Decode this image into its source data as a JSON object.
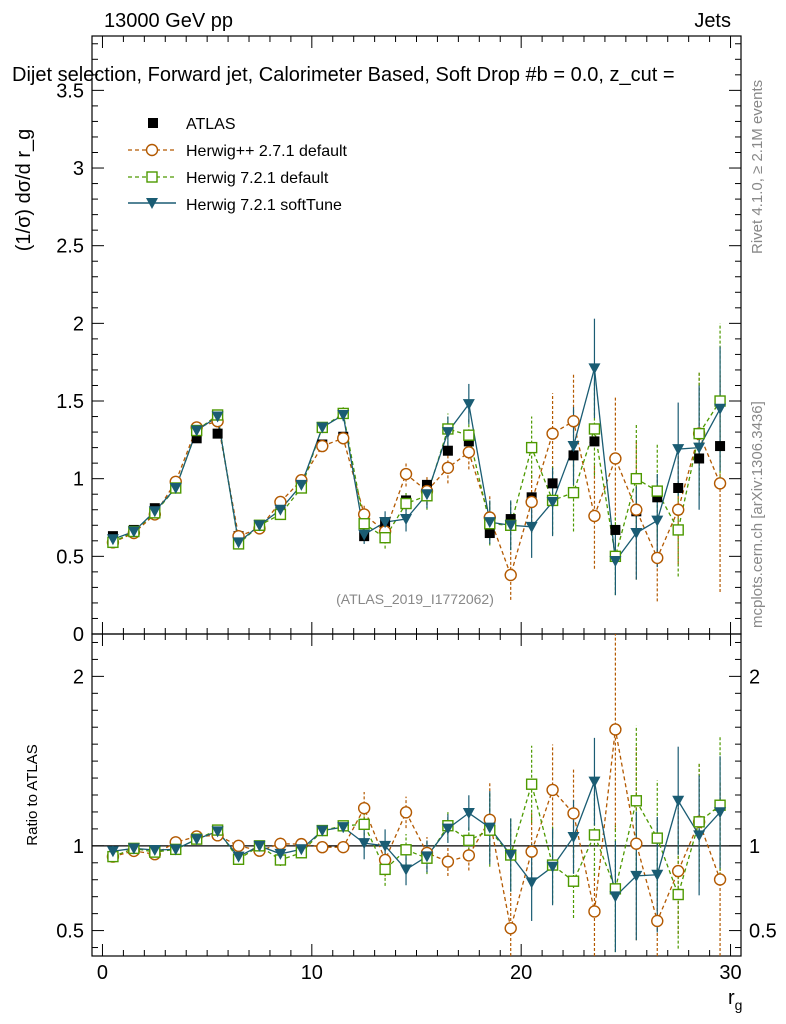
{
  "header": {
    "energy_label": "13000 GeV pp",
    "process_label": "Jets"
  },
  "side": {
    "rivet_label": "Rivet 4.1.0, ≥ 2.1M events",
    "mcplots_label": "mcplots.cern.ch [arXiv:1306.3436]"
  },
  "chart_data": {
    "type": "scatter",
    "title": "Dijet selection, Forward jet, Calorimeter Based, Soft Drop #b = 0.0, z_cut =",
    "analysis_id": "(ATLAS_2019_I1772062)",
    "xlabel": "r_g",
    "ylabel": "(1/σ) dσ/d r_g",
    "ratio_ylabel": "Ratio to ATLAS",
    "xlim": [
      -0.5,
      30.5
    ],
    "ylim": [
      0,
      3.85
    ],
    "ratio_ylim": [
      0.35,
      2.25
    ],
    "x_ticks": [
      0,
      10,
      20,
      30
    ],
    "y_ticks": [
      0,
      0.5,
      1,
      1.5,
      2,
      2.5,
      3,
      3.5
    ],
    "ratio_ticks": [
      0.5,
      1,
      2
    ],
    "x": [
      0.5,
      1.5,
      2.5,
      3.5,
      4.5,
      5.5,
      6.5,
      7.5,
      8.5,
      9.5,
      10.5,
      11.5,
      12.5,
      13.5,
      14.5,
      15.5,
      16.5,
      17.5,
      18.5,
      19.5,
      20.5,
      21.5,
      22.5,
      23.5,
      24.5,
      25.5,
      26.5,
      27.5,
      28.5,
      29.5
    ],
    "legend": [
      "ATLAS",
      "Herwig++ 2.7.1 default",
      "Herwig 7.2.1 default",
      "Herwig 7.2.1 softTune"
    ],
    "series": [
      {
        "name": "ATLAS",
        "color": "#000000",
        "marker": "square-filled",
        "values": [
          0.63,
          0.67,
          0.81,
          0.96,
          1.26,
          1.29,
          0.63,
          0.7,
          0.84,
          0.98,
          1.22,
          1.27,
          0.63,
          0.72,
          0.86,
          0.96,
          1.18,
          1.24,
          0.65,
          0.74,
          0.88,
          0.97,
          1.15,
          1.24,
          0.67,
          0.79,
          0.88,
          0.94,
          1.13,
          1.21
        ]
      },
      {
        "name": "Herwig++ 2.7.1 default",
        "color": "#b35900",
        "marker": "circle-open",
        "line": "dashed",
        "values": [
          0.59,
          0.65,
          0.77,
          0.98,
          1.33,
          1.37,
          0.63,
          0.68,
          0.85,
          0.99,
          1.21,
          1.26,
          0.77,
          0.66,
          1.03,
          0.92,
          1.07,
          1.17,
          0.75,
          0.38,
          0.85,
          1.29,
          1.37,
          0.76,
          1.13,
          0.8,
          0.49,
          0.8,
          1.29,
          0.97
        ],
        "errors": [
          0.02,
          0.02,
          0.02,
          0.03,
          0.03,
          0.03,
          0.02,
          0.02,
          0.03,
          0.03,
          0.03,
          0.04,
          0.06,
          0.07,
          0.08,
          0.09,
          0.1,
          0.11,
          0.14,
          0.16,
          0.2,
          0.26,
          0.3,
          0.34,
          0.4,
          0.45,
          0.28,
          0.35,
          0.4,
          0.7
        ]
      },
      {
        "name": "Herwig 7.2.1 default",
        "color": "#4d9900",
        "marker": "square-open",
        "line": "dashed",
        "values": [
          0.59,
          0.66,
          0.78,
          0.94,
          1.31,
          1.41,
          0.58,
          0.7,
          0.77,
          0.94,
          1.33,
          1.42,
          0.71,
          0.62,
          0.84,
          0.89,
          1.32,
          1.28,
          0.71,
          0.7,
          1.2,
          0.86,
          0.91,
          1.32,
          0.5,
          1.0,
          0.92,
          0.67,
          1.29,
          1.5
        ],
        "errors": [
          0.02,
          0.02,
          0.02,
          0.03,
          0.03,
          0.03,
          0.02,
          0.02,
          0.03,
          0.03,
          0.03,
          0.04,
          0.06,
          0.07,
          0.08,
          0.09,
          0.1,
          0.11,
          0.14,
          0.16,
          0.2,
          0.22,
          0.25,
          0.3,
          0.25,
          0.35,
          0.3,
          0.3,
          0.4,
          0.5
        ]
      },
      {
        "name": "Herwig 7.2.1 softTune",
        "color": "#1a5c73",
        "marker": "triangle-down-filled",
        "line": "solid",
        "values": [
          0.61,
          0.66,
          0.79,
          0.94,
          1.31,
          1.4,
          0.59,
          0.7,
          0.8,
          0.96,
          1.33,
          1.41,
          0.64,
          0.72,
          0.74,
          0.9,
          1.3,
          1.48,
          0.72,
          0.7,
          0.69,
          0.85,
          1.21,
          1.71,
          0.47,
          0.65,
          0.73,
          1.19,
          1.2,
          1.45
        ],
        "errors": [
          0.02,
          0.02,
          0.02,
          0.03,
          0.03,
          0.03,
          0.02,
          0.02,
          0.03,
          0.03,
          0.03,
          0.04,
          0.06,
          0.07,
          0.08,
          0.09,
          0.1,
          0.13,
          0.14,
          0.16,
          0.2,
          0.22,
          0.25,
          0.32,
          0.22,
          0.3,
          0.3,
          0.3,
          0.4,
          0.4
        ]
      }
    ]
  }
}
